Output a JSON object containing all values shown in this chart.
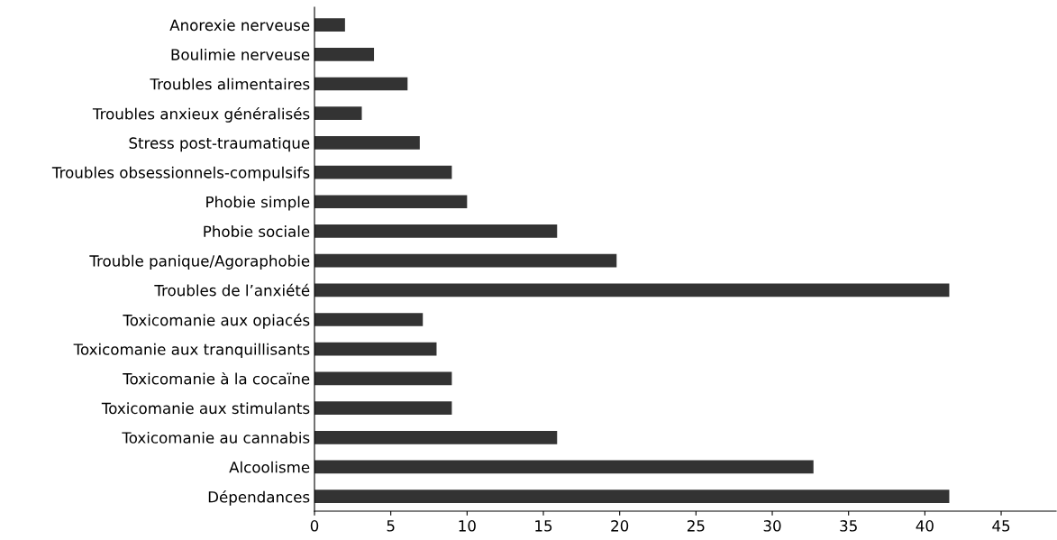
{
  "chart_data": {
    "type": "bar",
    "orientation": "horizontal",
    "color": "#333333",
    "categories": [
      "Anorexie nerveuse",
      "Boulimie nerveuse",
      "Troubles alimentaires",
      "Troubles anxieux généralisés",
      "Stress post-traumatique",
      "Troubles obsessionnels-compulsifs",
      "Phobie simple",
      "Phobie sociale",
      "Trouble panique/Agoraphobie",
      "Troubles de l’anxiété",
      "Toxicomanie aux opiacés",
      "Toxicomanie aux tranquillisants",
      "Toxicomanie à la cocaïne",
      "Toxicomanie aux stimulants",
      "Toxicomanie au cannabis",
      "Alcoolisme",
      "Dépendances"
    ],
    "values": [
      2,
      3.9,
      6.1,
      3.1,
      6.9,
      9,
      10,
      15.9,
      19.8,
      41.6,
      7.1,
      8,
      9,
      9,
      15.9,
      32.7,
      41.6
    ],
    "xlim": [
      0,
      48.6
    ],
    "xticks": [
      0,
      5,
      10,
      15,
      20,
      25,
      30,
      35,
      40,
      45
    ],
    "grid": false,
    "legend": false
  }
}
